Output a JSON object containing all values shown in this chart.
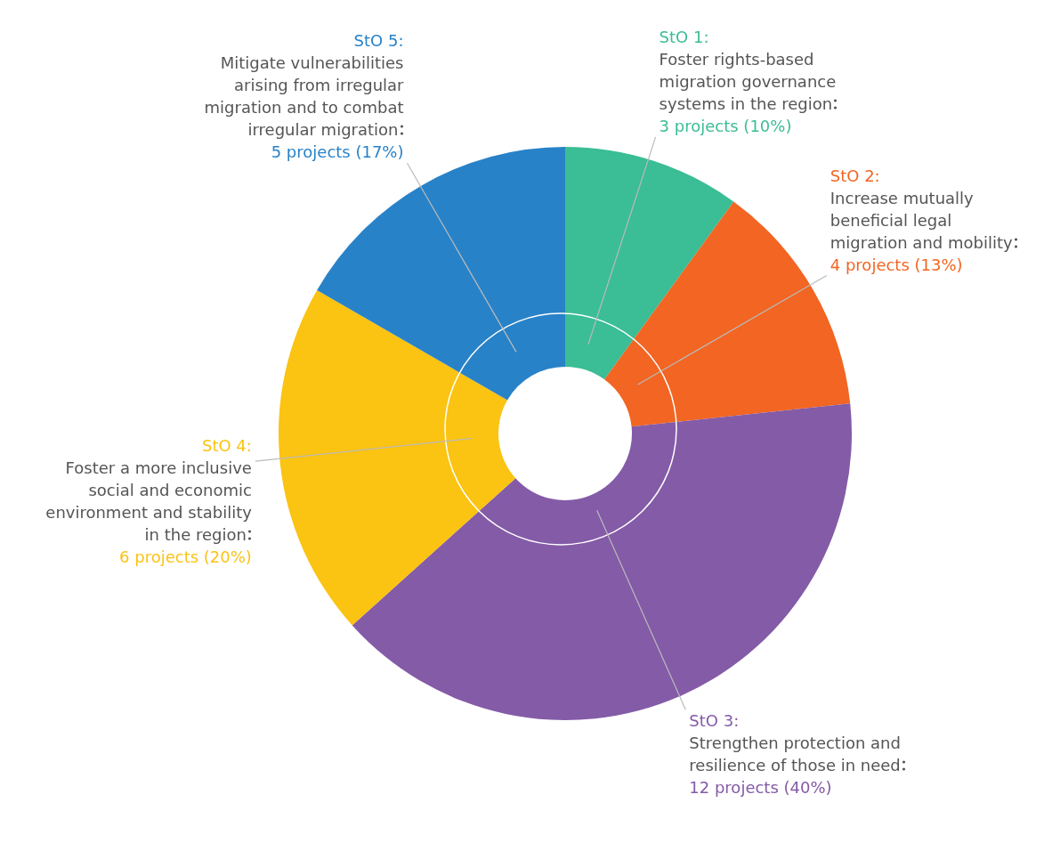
{
  "chart_data": {
    "type": "donut",
    "categories": [
      "StO 1: Foster rights-based migration governance systems in the region",
      "StO 2: Increase mutually beneficial legal migration and mobility",
      "StO 3: Strengthen protection and resilience of those in need",
      "StO 4: Foster a more inclusive social and economic environment and stability in the region",
      "StO 5: Mitigate vulnerabilities arising from irregular migration and to combat irregular migration"
    ],
    "values": [
      3,
      4,
      12,
      6,
      5
    ],
    "value_labels": [
      "3 projects (10%)",
      "4 projects (13%)",
      "12 projects (40%)",
      "6 projects (20%)",
      "5 projects (17%)"
    ],
    "colors": [
      "#3bbd95",
      "#f26522",
      "#845ba7",
      "#fbc312",
      "#2882c8"
    ],
    "legend": false
  }
}
